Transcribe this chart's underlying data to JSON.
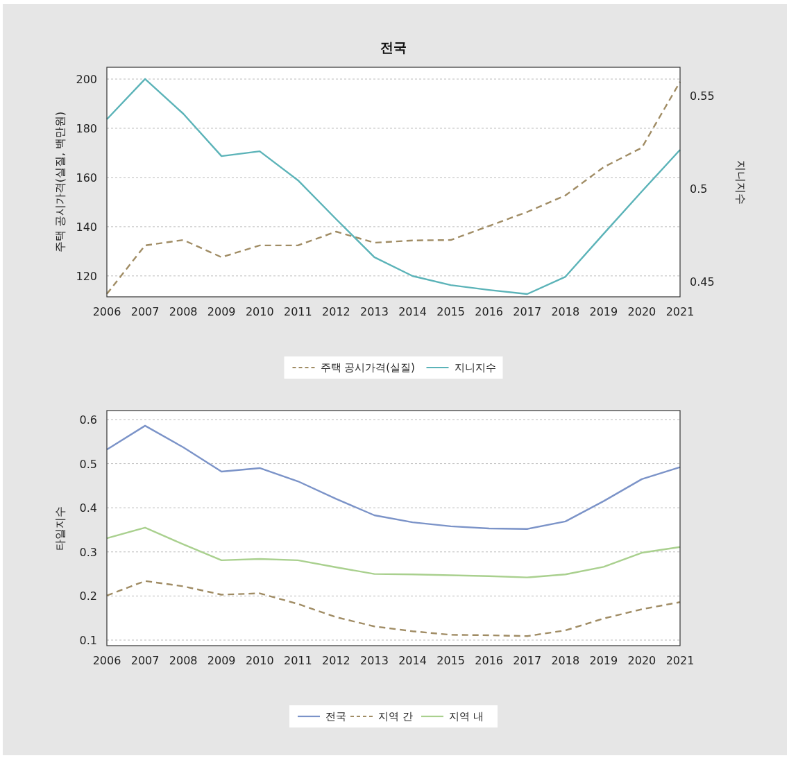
{
  "chart_data": [
    {
      "type": "line",
      "title": "전국",
      "ylabel": "주택 공시가격(실질, 백만원)",
      "y2label": "지니지수",
      "categories": [
        "2006",
        "2007",
        "2008",
        "2009",
        "2010",
        "2011",
        "2012",
        "2013",
        "2014",
        "2015",
        "2016",
        "2017",
        "2018",
        "2019",
        "2020",
        "2021"
      ],
      "series": [
        {
          "name": "주택 공시가격(실질)",
          "color": "#a08c64",
          "line_style": "dashed",
          "values": [
            112.7,
            132.4,
            134.6,
            127.6,
            132.4,
            132.4,
            138.0,
            133.5,
            134.4,
            134.6,
            140.3,
            146.0,
            152.7,
            164.2,
            172.1,
            198.9
          ]
        },
        {
          "name": "지니지수",
          "color": "#5bb3b8",
          "line_style": "solid",
          "axis": "y2",
          "values": [
            0.5373,
            0.559,
            0.5403,
            0.5175,
            0.5201,
            0.5045,
            0.4836,
            0.4631,
            0.453,
            0.4481,
            0.4455,
            0.4433,
            0.4526,
            0.4757,
            0.4985,
            0.5209
          ]
        }
      ],
      "ylim": [
        111.5,
        204.8
      ],
      "yticks": [
        120,
        140,
        160,
        180,
        200
      ],
      "y2lim": [
        0.4418,
        0.5653
      ],
      "y2ticks": [
        0.45,
        0.5,
        0.55
      ],
      "grid": "y",
      "legend": "bottom",
      "marker": "none"
    },
    {
      "type": "line",
      "ylabel": "타일지수",
      "categories": [
        "2006",
        "2007",
        "2008",
        "2009",
        "2010",
        "2011",
        "2012",
        "2013",
        "2014",
        "2015",
        "2016",
        "2017",
        "2018",
        "2019",
        "2020",
        "2021"
      ],
      "series": [
        {
          "name": "전국",
          "color": "#7b93c8",
          "line_style": "solid",
          "values": [
            0.532,
            0.586,
            0.537,
            0.482,
            0.49,
            0.46,
            0.42,
            0.383,
            0.367,
            0.358,
            0.353,
            0.352,
            0.369,
            0.415,
            0.465,
            0.492
          ]
        },
        {
          "name": "지역 간",
          "color": "#a08c64",
          "line_style": "dashed",
          "values": [
            0.201,
            0.234,
            0.222,
            0.203,
            0.206,
            0.182,
            0.152,
            0.131,
            0.12,
            0.112,
            0.111,
            0.109,
            0.122,
            0.149,
            0.17,
            0.186
          ]
        },
        {
          "name": "지역 내",
          "color": "#a9d08e",
          "line_style": "solid",
          "values": [
            0.331,
            0.355,
            0.317,
            0.281,
            0.284,
            0.281,
            0.265,
            0.25,
            0.249,
            0.247,
            0.245,
            0.242,
            0.249,
            0.266,
            0.298,
            0.311
          ]
        }
      ],
      "ylim": [
        0.0874,
        0.6204
      ],
      "yticks": [
        0.1,
        0.2,
        0.3,
        0.4,
        0.5,
        0.6
      ],
      "grid": "y",
      "legend": "bottom",
      "marker": "none"
    }
  ]
}
